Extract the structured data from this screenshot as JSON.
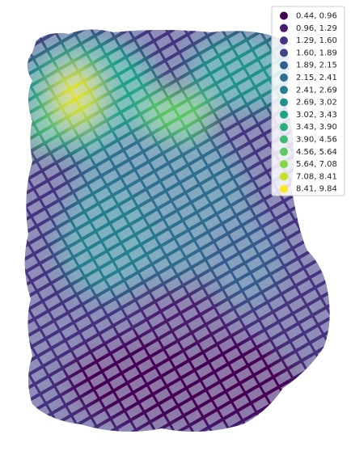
{
  "legend": {
    "entries": [
      {
        "label": "0.44, 0.96",
        "color": "#440154"
      },
      {
        "label": "0.96, 1.29",
        "color": "#481b6d"
      },
      {
        "label": "1.29, 1.60",
        "color": "#46327e"
      },
      {
        "label": "1.60, 1.89",
        "color": "#3f4788"
      },
      {
        "label": "1.89, 2.15",
        "color": "#365c8d"
      },
      {
        "label": "2.15, 2.41",
        "color": "#2e6e8e"
      },
      {
        "label": "2.41, 2.69",
        "color": "#277f8e"
      },
      {
        "label": "2.69, 3.02",
        "color": "#21918c"
      },
      {
        "label": "3.02, 3.43",
        "color": "#1fa188"
      },
      {
        "label": "3.43, 3.90",
        "color": "#28ae80"
      },
      {
        "label": "3.90, 4.56",
        "color": "#3fbc73"
      },
      {
        "label": "4.56, 5.64",
        "color": "#5ec962"
      },
      {
        "label": "5.64, 7.08",
        "color": "#84d44b"
      },
      {
        "label": "7.08, 8.41",
        "color": "#c8e020"
      },
      {
        "label": "8.41, 9.84",
        "color": "#fde725"
      }
    ]
  }
}
